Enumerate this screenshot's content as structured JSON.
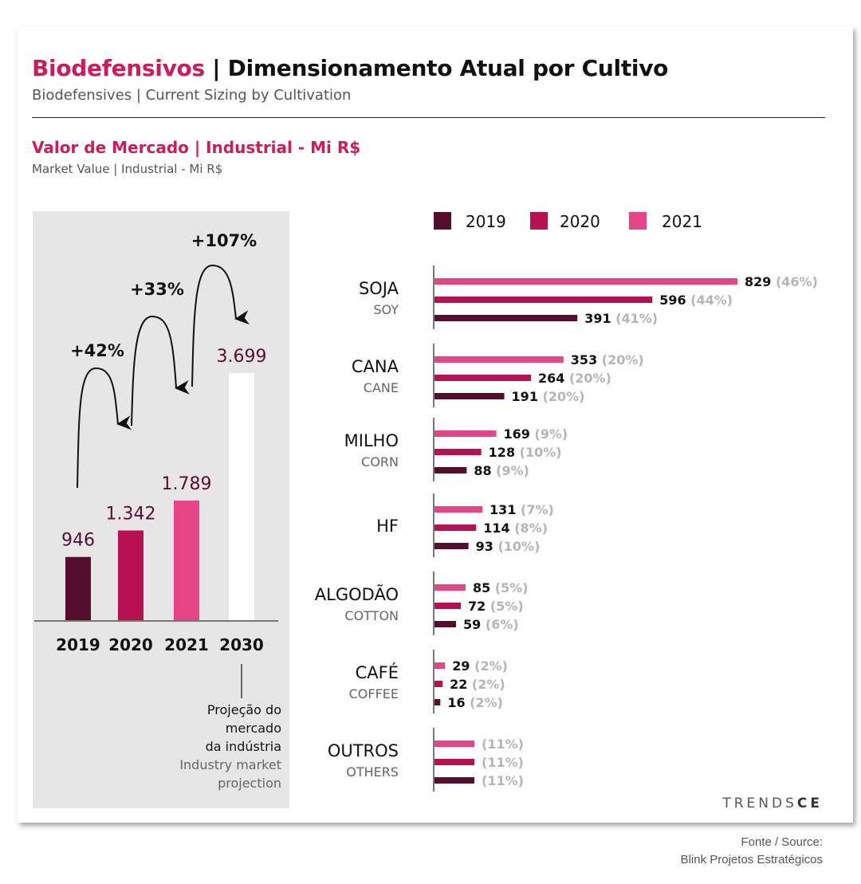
{
  "header": {
    "title_highlight": "Biodefensivos",
    "title_rest": " | Dimensionamento Atual por Cultivo",
    "subtitle": "Biodefensives | Current Sizing by Cultivation"
  },
  "section": {
    "title": "Valor de Mercado | Industrial - Mi R$",
    "subtitle": "Market Value | Industrial - Mi R$"
  },
  "colors": {
    "accent": "#d11a5a",
    "y2019": "#560d2e",
    "y2020": "#b71152",
    "y2021": "#e64486",
    "y2030": "#ffffff",
    "panel": "#e6e6e6"
  },
  "projection_note": {
    "pt_lines": [
      "Projeção do",
      "mercado",
      "da indústria"
    ],
    "en_lines": [
      "Industry market",
      "projection"
    ]
  },
  "logo": {
    "text_light": "TRENDS",
    "text_bold": "CE"
  },
  "source": {
    "line1": "Fonte / Source:",
    "line2": "Blink Projetos Estratégicos"
  },
  "chart_data": [
    {
      "type": "bar",
      "title": "Valor de Mercado | Industrial - Mi R$",
      "categories": [
        "2019",
        "2020",
        "2021",
        "2030"
      ],
      "values": [
        946,
        1342,
        1789,
        3699
      ],
      "value_labels": [
        "946",
        "1.342",
        "1.789",
        "3.699"
      ],
      "growth_annotations": [
        {
          "from": "2019",
          "to": "2020",
          "label": "+42%"
        },
        {
          "from": "2020",
          "to": "2021",
          "label": "+33%"
        },
        {
          "from": "2021",
          "to": "2030",
          "label": "+107%"
        }
      ],
      "ylim": [
        0,
        3699
      ],
      "grid": false,
      "note": "2030 = projection"
    },
    {
      "type": "bar",
      "orientation": "horizontal",
      "legend": [
        "2019",
        "2020",
        "2021"
      ],
      "legend_position": "top",
      "xlim": [
        0,
        829
      ],
      "categories": [
        {
          "pt": "SOJA",
          "en": "SOY"
        },
        {
          "pt": "CANA",
          "en": "CANE"
        },
        {
          "pt": "MILHO",
          "en": "CORN"
        },
        {
          "pt": "HF",
          "en": ""
        },
        {
          "pt": "ALGODÃO",
          "en": "COTTON"
        },
        {
          "pt": "CAFÉ",
          "en": "COFFEE"
        },
        {
          "pt": "OUTROS",
          "en": "OTHERS"
        }
      ],
      "series": [
        {
          "name": "2021",
          "values": [
            829,
            353,
            169,
            131,
            85,
            29,
            null
          ],
          "shares": [
            "(46%)",
            "(20%)",
            "(9%)",
            "(7%)",
            "(5%)",
            "(2%)",
            "(11%)"
          ]
        },
        {
          "name": "2020",
          "values": [
            596,
            264,
            128,
            114,
            72,
            22,
            null
          ],
          "shares": [
            "(44%)",
            "(20%)",
            "(10%)",
            "(8%)",
            "(5%)",
            "(2%)",
            "(11%)"
          ]
        },
        {
          "name": "2019",
          "values": [
            391,
            191,
            88,
            93,
            59,
            16,
            null
          ],
          "shares": [
            "(41%)",
            "(20%)",
            "(9%)",
            "(10%)",
            "(6%)",
            "(2%)",
            "(11%)"
          ]
        }
      ]
    }
  ]
}
